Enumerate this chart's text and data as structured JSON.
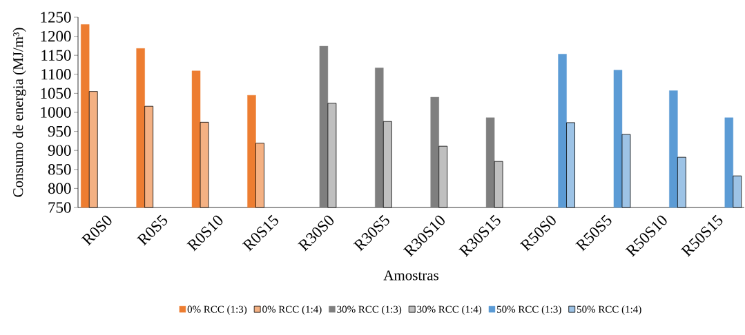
{
  "chart_data": {
    "type": "bar",
    "xlabel": "Amostras",
    "ylabel": "Consumo de energia (MJ/m³)",
    "categories": [
      "R0S0",
      "R0S5",
      "R0S10",
      "R0S15",
      "R30S0",
      "R30S5",
      "R30S10",
      "R30S15",
      "R50S0",
      "R50S5",
      "R50S10",
      "R50S15"
    ],
    "series": [
      {
        "name": "0% RCC (1:3)",
        "color": "#ed7d31",
        "values": [
          1231,
          1168,
          1109,
          1045,
          null,
          null,
          null,
          null,
          null,
          null,
          null,
          null
        ]
      },
      {
        "name": "0% RCC (1:4)",
        "color": "#f4b183",
        "values": [
          1055,
          1016,
          974,
          919,
          null,
          null,
          null,
          null,
          null,
          null,
          null,
          null
        ]
      },
      {
        "name": "30% RCC (1:3)",
        "color": "#7f7f7f",
        "values": [
          null,
          null,
          null,
          null,
          1174,
          1117,
          1040,
          986,
          null,
          null,
          null,
          null
        ]
      },
      {
        "name": "30% RCC (1:4)",
        "color": "#bfbfbf",
        "values": [
          null,
          null,
          null,
          null,
          1024,
          976,
          911,
          871,
          null,
          null,
          null,
          null
        ]
      },
      {
        "name": "50% RCC (1:3)",
        "color": "#5b9bd5",
        "values": [
          null,
          null,
          null,
          null,
          null,
          null,
          null,
          null,
          1153,
          1111,
          1057,
          986
        ]
      },
      {
        "name": "50% RCC (1:4)",
        "color": "#9dc3e6",
        "values": [
          null,
          null,
          null,
          null,
          null,
          null,
          null,
          null,
          973,
          942,
          882,
          833
        ]
      }
    ],
    "ylim": [
      750,
      1250
    ],
    "yticks": [
      750,
      800,
      850,
      900,
      950,
      1000,
      1050,
      1100,
      1150,
      1200,
      1250
    ],
    "grid": false,
    "legend": "bottom"
  }
}
